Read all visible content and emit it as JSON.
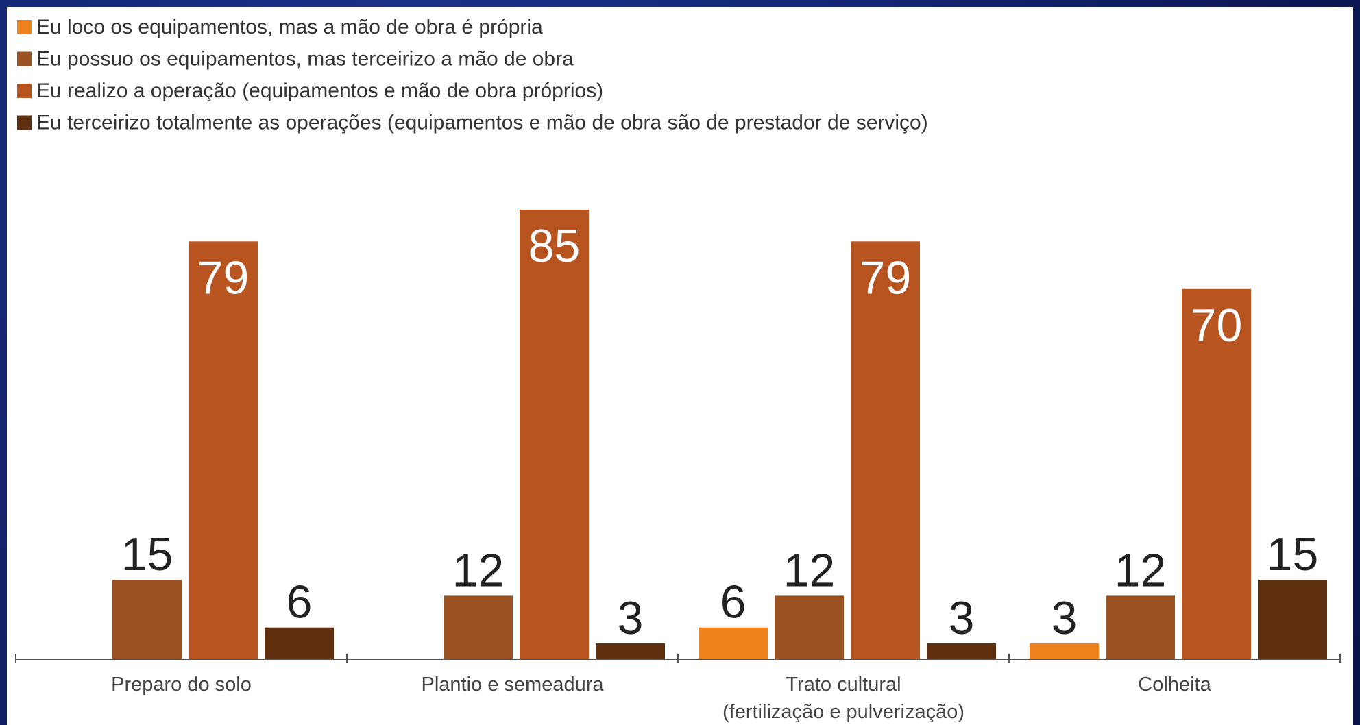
{
  "chart_data": {
    "type": "bar",
    "categories": [
      "Preparo do solo",
      "Plantio e semeadura",
      "Trato cultural\n(fertilização e pulverização)",
      "Colheita"
    ],
    "series": [
      {
        "name": "Eu loco os equipamentos, mas a mão de obra é própria",
        "color": "#f0821e",
        "values": [
          null,
          null,
          6,
          3
        ]
      },
      {
        "name": "Eu possuo os equipamentos, mas terceirizo a mão de obra",
        "color": "#9a5222",
        "values": [
          15,
          12,
          12,
          12
        ]
      },
      {
        "name": "Eu realizo a operação (equipamentos e mão de obra próprios)",
        "color": "#b85420",
        "values": [
          79,
          85,
          79,
          70
        ]
      },
      {
        "name": "Eu terceirizo totalmente as operações (equipamentos e mão de obra são de prestador de serviço)",
        "color": "#5e3010",
        "values": [
          6,
          3,
          3,
          15
        ]
      }
    ],
    "ylim": [
      0,
      85
    ],
    "legend": "top-left"
  }
}
